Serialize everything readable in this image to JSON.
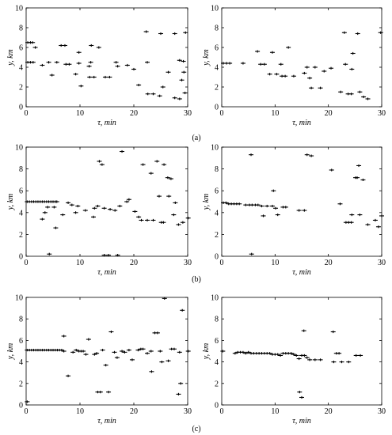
{
  "figure": {
    "captions": [
      "(a)",
      "(b)",
      "(c)"
    ]
  },
  "chart_data": [
    {
      "type": "scatter",
      "panel": "a-left",
      "xlabel": "τ, min",
      "ylabel": "y, km",
      "xlim": [
        0,
        30
      ],
      "ylim": [
        0,
        10
      ],
      "xticks": [
        "0",
        "10",
        "20",
        "30"
      ],
      "yticks": [
        "0",
        "2",
        "4",
        "6",
        "8",
        "10"
      ],
      "grid": false,
      "marker": "+",
      "points": [
        [
          0.3,
          6.5
        ],
        [
          0.8,
          6.5
        ],
        [
          1.2,
          6.5
        ],
        [
          1.7,
          6.0
        ],
        [
          0.3,
          4.5
        ],
        [
          0.8,
          4.5
        ],
        [
          1.3,
          4.5
        ],
        [
          3.0,
          4.2
        ],
        [
          4.2,
          4.5
        ],
        [
          4.8,
          3.2
        ],
        [
          5.7,
          4.5
        ],
        [
          6.5,
          6.2
        ],
        [
          7.2,
          6.2
        ],
        [
          7.4,
          4.3
        ],
        [
          8.0,
          4.3
        ],
        [
          9.2,
          3.3
        ],
        [
          9.8,
          4.4
        ],
        [
          9.8,
          5.5
        ],
        [
          10.2,
          2.1
        ],
        [
          11.7,
          4.1
        ],
        [
          11.8,
          3.0
        ],
        [
          12.6,
          3.0
        ],
        [
          12.1,
          6.2
        ],
        [
          12.0,
          4.5
        ],
        [
          13.5,
          6.0
        ],
        [
          14.7,
          3.0
        ],
        [
          15.5,
          3.0
        ],
        [
          16.7,
          4.5
        ],
        [
          17.0,
          4.1
        ],
        [
          18.8,
          4.2
        ],
        [
          20.0,
          3.8
        ],
        [
          20.9,
          2.2
        ],
        [
          22.3,
          7.6
        ],
        [
          22.5,
          4.5
        ],
        [
          22.6,
          1.3
        ],
        [
          23.6,
          1.3
        ],
        [
          25.0,
          7.4
        ],
        [
          24.8,
          1.1
        ],
        [
          25.4,
          2.0
        ],
        [
          26.4,
          3.5
        ],
        [
          27.6,
          7.4
        ],
        [
          27.6,
          0.9
        ],
        [
          28.5,
          0.8
        ],
        [
          28.5,
          4.7
        ],
        [
          29.2,
          4.6
        ],
        [
          29.6,
          7.5
        ],
        [
          29.5,
          1.4
        ],
        [
          28.9,
          2.7
        ],
        [
          29.3,
          3.5
        ]
      ]
    },
    {
      "type": "scatter",
      "panel": "a-right",
      "xlabel": "τ, min",
      "ylabel": "y, km",
      "xlim": [
        0,
        30
      ],
      "ylim": [
        0,
        10
      ],
      "xticks": [
        "0",
        "10",
        "20",
        "30"
      ],
      "yticks": [
        "0",
        "2",
        "4",
        "6",
        "8",
        "10"
      ],
      "grid": false,
      "marker": "+",
      "points": [
        [
          0.3,
          4.4
        ],
        [
          0.9,
          4.4
        ],
        [
          1.5,
          4.4
        ],
        [
          4.0,
          4.4
        ],
        [
          6.7,
          5.6
        ],
        [
          7.3,
          4.3
        ],
        [
          8.0,
          4.3
        ],
        [
          9.0,
          3.3
        ],
        [
          9.5,
          5.5
        ],
        [
          10.3,
          3.3
        ],
        [
          11.1,
          4.3
        ],
        [
          11.3,
          3.1
        ],
        [
          11.9,
          3.1
        ],
        [
          12.5,
          6.0
        ],
        [
          13.5,
          3.1
        ],
        [
          15.5,
          3.4
        ],
        [
          16.0,
          4.0
        ],
        [
          16.5,
          2.9
        ],
        [
          16.8,
          1.9
        ],
        [
          17.5,
          4.0
        ],
        [
          18.5,
          1.9
        ],
        [
          19.2,
          3.6
        ],
        [
          20.5,
          3.9
        ],
        [
          22.3,
          1.5
        ],
        [
          23.0,
          7.5
        ],
        [
          23.2,
          4.3
        ],
        [
          23.7,
          1.3
        ],
        [
          24.3,
          1.3
        ],
        [
          24.6,
          5.4
        ],
        [
          24.4,
          3.8
        ],
        [
          25.5,
          7.4
        ],
        [
          25.9,
          1.5
        ],
        [
          26.6,
          1.0
        ],
        [
          27.4,
          0.8
        ],
        [
          29.8,
          7.5
        ]
      ]
    },
    {
      "type": "scatter",
      "panel": "b-left",
      "xlabel": "τ, min",
      "ylabel": "y, km",
      "xlim": [
        0,
        30
      ],
      "ylim": [
        0,
        10
      ],
      "xticks": [
        "0",
        "10",
        "20",
        "30"
      ],
      "yticks": [
        "0",
        "2",
        "4",
        "6",
        "8",
        "10"
      ],
      "grid": false,
      "marker": "+",
      "points": [
        [
          0.2,
          5.0
        ],
        [
          0.6,
          5.0
        ],
        [
          1.0,
          5.0
        ],
        [
          1.4,
          5.0
        ],
        [
          1.8,
          5.0
        ],
        [
          2.2,
          5.0
        ],
        [
          2.6,
          5.0
        ],
        [
          3.0,
          5.0
        ],
        [
          3.4,
          5.0
        ],
        [
          3.8,
          5.0
        ],
        [
          4.2,
          5.0
        ],
        [
          4.6,
          5.0
        ],
        [
          5.0,
          5.0
        ],
        [
          5.4,
          5.0
        ],
        [
          5.7,
          5.0
        ],
        [
          3.0,
          3.4
        ],
        [
          3.5,
          4.0
        ],
        [
          4.0,
          4.5
        ],
        [
          5.2,
          4.5
        ],
        [
          5.5,
          2.6
        ],
        [
          4.3,
          0.2
        ],
        [
          6.8,
          3.8
        ],
        [
          7.8,
          4.9
        ],
        [
          8.5,
          4.7
        ],
        [
          9.6,
          4.6
        ],
        [
          9.2,
          4.0
        ],
        [
          11.0,
          4.2
        ],
        [
          12.7,
          4.4
        ],
        [
          12.5,
          3.6
        ],
        [
          13.6,
          8.7
        ],
        [
          13.3,
          4.6
        ],
        [
          14.1,
          8.4
        ],
        [
          14.5,
          4.4
        ],
        [
          14.5,
          0.1
        ],
        [
          15.6,
          4.3
        ],
        [
          15.3,
          0.1
        ],
        [
          16.5,
          4.2
        ],
        [
          17.0,
          0.1
        ],
        [
          17.8,
          9.6
        ],
        [
          17.4,
          4.6
        ],
        [
          18.7,
          5.0
        ],
        [
          19.1,
          5.2
        ],
        [
          20.2,
          4.1
        ],
        [
          20.9,
          3.6
        ],
        [
          21.4,
          3.3
        ],
        [
          21.7,
          8.4
        ],
        [
          22.5,
          3.3
        ],
        [
          23.2,
          7.6
        ],
        [
          23.6,
          3.3
        ],
        [
          24.3,
          8.7
        ],
        [
          24.7,
          5.5
        ],
        [
          25.1,
          3.1
        ],
        [
          25.5,
          3.1
        ],
        [
          25.6,
          8.4
        ],
        [
          26.3,
          7.2
        ],
        [
          26.5,
          5.5
        ],
        [
          26.9,
          7.1
        ],
        [
          27.4,
          3.8
        ],
        [
          27.7,
          4.9
        ],
        [
          28.3,
          2.9
        ],
        [
          29.1,
          3.1
        ],
        [
          30.1,
          3.5
        ]
      ]
    },
    {
      "type": "scatter",
      "panel": "b-right",
      "xlabel": "τ, min",
      "ylabel": "y, km",
      "xlim": [
        0,
        30
      ],
      "ylim": [
        0,
        10
      ],
      "xticks": [
        "0",
        "10",
        "20",
        "30"
      ],
      "yticks": [
        "0",
        "2",
        "4",
        "6",
        "8",
        "10"
      ],
      "grid": false,
      "marker": "+",
      "points": [
        [
          0.3,
          4.9
        ],
        [
          0.8,
          4.9
        ],
        [
          1.3,
          4.8
        ],
        [
          1.8,
          4.8
        ],
        [
          2.3,
          4.8
        ],
        [
          2.8,
          4.8
        ],
        [
          3.3,
          4.8
        ],
        [
          4.5,
          4.7
        ],
        [
          5.2,
          4.7
        ],
        [
          5.7,
          4.7
        ],
        [
          5.5,
          9.3
        ],
        [
          5.6,
          0.2
        ],
        [
          6.3,
          4.7
        ],
        [
          6.8,
          4.7
        ],
        [
          7.5,
          4.6
        ],
        [
          7.8,
          3.7
        ],
        [
          8.5,
          4.6
        ],
        [
          9.5,
          4.6
        ],
        [
          9.7,
          6.0
        ],
        [
          10.1,
          4.4
        ],
        [
          10.5,
          3.8
        ],
        [
          11.5,
          4.5
        ],
        [
          12.0,
          4.5
        ],
        [
          14.5,
          4.2
        ],
        [
          15.5,
          4.2
        ],
        [
          16.0,
          9.3
        ],
        [
          16.8,
          9.2
        ],
        [
          20.6,
          7.9
        ],
        [
          22.2,
          4.8
        ],
        [
          23.3,
          3.1
        ],
        [
          23.8,
          3.1
        ],
        [
          24.3,
          3.1
        ],
        [
          24.4,
          3.8
        ],
        [
          25.1,
          7.2
        ],
        [
          25.4,
          7.2
        ],
        [
          25.7,
          8.3
        ],
        [
          25.9,
          3.8
        ],
        [
          26.5,
          7.0
        ],
        [
          27.4,
          2.9
        ],
        [
          28.8,
          3.3
        ],
        [
          29.4,
          2.7
        ],
        [
          30.0,
          3.7
        ]
      ]
    },
    {
      "type": "scatter",
      "panel": "c-left",
      "xlabel": "τ, min",
      "ylabel": "y, km",
      "xlim": [
        0,
        30
      ],
      "ylim": [
        0,
        10
      ],
      "xticks": [
        "0",
        "10",
        "20",
        "30"
      ],
      "yticks": [
        "0",
        "2",
        "4",
        "6",
        "8",
        "10"
      ],
      "grid": false,
      "marker": "+",
      "points": [
        [
          0.2,
          0.3
        ],
        [
          0.2,
          5.1
        ],
        [
          0.6,
          5.1
        ],
        [
          1.0,
          5.1
        ],
        [
          1.4,
          5.1
        ],
        [
          1.8,
          5.1
        ],
        [
          2.2,
          5.1
        ],
        [
          2.6,
          5.1
        ],
        [
          3.0,
          5.1
        ],
        [
          3.4,
          5.1
        ],
        [
          3.8,
          5.1
        ],
        [
          4.2,
          5.1
        ],
        [
          4.6,
          5.1
        ],
        [
          5.0,
          5.1
        ],
        [
          5.4,
          5.1
        ],
        [
          5.8,
          5.1
        ],
        [
          6.2,
          5.1
        ],
        [
          6.6,
          5.1
        ],
        [
          7.0,
          5.0
        ],
        [
          7.0,
          6.4
        ],
        [
          7.8,
          2.7
        ],
        [
          8.7,
          4.9
        ],
        [
          9.3,
          5.1
        ],
        [
          9.8,
          5.0
        ],
        [
          10.2,
          5.0
        ],
        [
          10.6,
          5.0
        ],
        [
          11.1,
          4.7
        ],
        [
          11.6,
          6.1
        ],
        [
          12.7,
          4.7
        ],
        [
          13.1,
          4.8
        ],
        [
          13.3,
          1.2
        ],
        [
          13.8,
          1.2
        ],
        [
          14.2,
          5.1
        ],
        [
          14.8,
          3.7
        ],
        [
          15.3,
          1.2
        ],
        [
          15.8,
          6.8
        ],
        [
          16.4,
          4.9
        ],
        [
          16.9,
          4.4
        ],
        [
          17.8,
          5.0
        ],
        [
          18.3,
          4.9
        ],
        [
          19.1,
          5.1
        ],
        [
          19.7,
          4.2
        ],
        [
          20.8,
          5.1
        ],
        [
          21.3,
          5.2
        ],
        [
          21.7,
          5.2
        ],
        [
          22.5,
          4.8
        ],
        [
          23.2,
          5.0
        ],
        [
          23.3,
          3.1
        ],
        [
          23.9,
          6.7
        ],
        [
          24.4,
          6.7
        ],
        [
          24.9,
          5.0
        ],
        [
          25.2,
          4.0
        ],
        [
          25.7,
          9.9
        ],
        [
          26.4,
          4.1
        ],
        [
          27.0,
          5.2
        ],
        [
          27.5,
          5.2
        ],
        [
          28.3,
          1.0
        ],
        [
          28.5,
          4.9
        ],
        [
          28.7,
          2.0
        ],
        [
          29.0,
          8.8
        ],
        [
          30.1,
          5.0
        ]
      ]
    },
    {
      "type": "scatter",
      "panel": "c-right",
      "xlabel": "τ, min",
      "ylabel": "y, km",
      "xlim": [
        0,
        30
      ],
      "ylim": [
        0,
        10
      ],
      "xticks": [
        "0",
        "10",
        "20",
        "30"
      ],
      "yticks": [
        "0",
        "2",
        "4",
        "6",
        "8",
        "10"
      ],
      "grid": false,
      "marker": "+",
      "points": [
        [
          0.2,
          5.0
        ],
        [
          2.5,
          4.8
        ],
        [
          3.0,
          4.9
        ],
        [
          3.5,
          4.9
        ],
        [
          4.0,
          4.9
        ],
        [
          4.5,
          4.8
        ],
        [
          5.0,
          4.9
        ],
        [
          5.5,
          4.8
        ],
        [
          6.0,
          4.8
        ],
        [
          6.5,
          4.8
        ],
        [
          7.0,
          4.8
        ],
        [
          7.5,
          4.8
        ],
        [
          8.0,
          4.8
        ],
        [
          8.5,
          4.8
        ],
        [
          9.0,
          4.8
        ],
        [
          9.5,
          4.7
        ],
        [
          10.0,
          4.7
        ],
        [
          10.5,
          4.7
        ],
        [
          11.0,
          4.6
        ],
        [
          11.5,
          4.8
        ],
        [
          12.0,
          4.8
        ],
        [
          12.5,
          4.8
        ],
        [
          13.0,
          4.8
        ],
        [
          13.5,
          4.7
        ],
        [
          14.0,
          4.6
        ],
        [
          14.5,
          4.3
        ],
        [
          15.0,
          4.6
        ],
        [
          15.5,
          4.6
        ],
        [
          16.0,
          4.4
        ],
        [
          16.5,
          4.2
        ],
        [
          17.5,
          4.2
        ],
        [
          18.5,
          4.2
        ],
        [
          14.6,
          1.2
        ],
        [
          15.0,
          0.7
        ],
        [
          15.4,
          6.9
        ],
        [
          20.9,
          6.8
        ],
        [
          21.0,
          4.0
        ],
        [
          21.5,
          4.8
        ],
        [
          22.0,
          4.8
        ],
        [
          22.5,
          4.0
        ],
        [
          23.8,
          4.0
        ],
        [
          25.2,
          4.6
        ],
        [
          26.0,
          4.6
        ]
      ]
    }
  ]
}
